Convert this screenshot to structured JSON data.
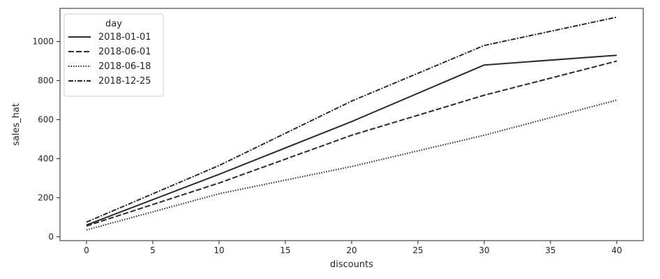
{
  "chart_data": {
    "type": "line",
    "title": "",
    "xlabel": "discounts",
    "ylabel": "sales_hat",
    "xlim": [
      -2,
      42
    ],
    "ylim": [
      -20,
      1170
    ],
    "x_ticks": [
      0,
      5,
      10,
      15,
      20,
      25,
      30,
      35,
      40
    ],
    "y_ticks": [
      0,
      200,
      400,
      600,
      800,
      1000
    ],
    "grid": false,
    "legend": {
      "title": "day",
      "placement": "top-left"
    },
    "x": [
      0,
      10,
      20,
      30,
      40
    ],
    "series": [
      {
        "name": "2018-01-01",
        "style": "solid",
        "values": [
          60,
          320,
          590,
          880,
          930
        ]
      },
      {
        "name": "2018-06-01",
        "style": "dashed",
        "values": [
          55,
          275,
          520,
          725,
          900
        ]
      },
      {
        "name": "2018-06-18",
        "style": "dotted",
        "values": [
          35,
          220,
          360,
          520,
          700
        ]
      },
      {
        "name": "2018-12-25",
        "style": "dashdot",
        "values": [
          75,
          365,
          695,
          980,
          1125
        ]
      }
    ],
    "line_color": "#2b2b2b"
  }
}
